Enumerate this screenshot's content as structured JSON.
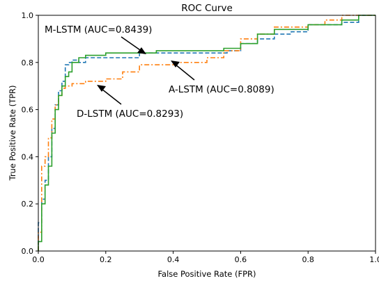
{
  "chart_data": {
    "type": "line",
    "title": "ROC Curve",
    "xlabel": "False Positive Rate (FPR)",
    "ylabel": "True Positive Rate (TPR)",
    "xlim": [
      0,
      1
    ],
    "ylim": [
      0,
      1
    ],
    "xticks": [
      "0.0",
      "0.2",
      "0.4",
      "0.6",
      "0.8",
      "1.0"
    ],
    "yticks": [
      "0.0",
      "0.2",
      "0.4",
      "0.6",
      "0.8",
      "1.0"
    ],
    "grid": false,
    "series": [
      {
        "name": "A-LSTM",
        "color": "#1f77b4",
        "style": "dashed",
        "x": [
          0.0,
          0.01,
          0.02,
          0.03,
          0.04,
          0.05,
          0.06,
          0.07,
          0.08,
          0.09,
          0.1,
          0.12,
          0.14,
          0.3,
          0.56,
          0.6,
          0.65,
          0.7,
          0.75,
          0.8,
          0.9,
          0.95,
          1.0
        ],
        "y": [
          0.0,
          0.12,
          0.22,
          0.3,
          0.4,
          0.52,
          0.62,
          0.68,
          0.72,
          0.79,
          0.8,
          0.81,
          0.8,
          0.82,
          0.84,
          0.85,
          0.88,
          0.9,
          0.92,
          0.93,
          0.96,
          0.97,
          1.0
        ]
      },
      {
        "name": "D-LSTM",
        "color": "#ff7f0e",
        "style": "dashdot",
        "x": [
          0.0,
          0.01,
          0.02,
          0.03,
          0.04,
          0.05,
          0.06,
          0.07,
          0.08,
          0.1,
          0.14,
          0.2,
          0.25,
          0.3,
          0.4,
          0.5,
          0.55,
          0.6,
          0.65,
          0.7,
          0.8,
          0.85,
          0.9,
          1.0
        ],
        "y": [
          0.0,
          0.08,
          0.36,
          0.4,
          0.48,
          0.56,
          0.62,
          0.66,
          0.69,
          0.7,
          0.71,
          0.72,
          0.73,
          0.76,
          0.79,
          0.8,
          0.82,
          0.85,
          0.9,
          0.92,
          0.95,
          0.96,
          0.98,
          1.0
        ]
      },
      {
        "name": "M-LSTM",
        "color": "#2ca02c",
        "style": "solid",
        "x": [
          0.0,
          0.01,
          0.02,
          0.03,
          0.04,
          0.05,
          0.06,
          0.07,
          0.08,
          0.09,
          0.1,
          0.12,
          0.14,
          0.2,
          0.25,
          0.35,
          0.45,
          0.55,
          0.6,
          0.65,
          0.7,
          0.8,
          0.9,
          0.95,
          1.0
        ],
        "y": [
          0.0,
          0.04,
          0.2,
          0.28,
          0.36,
          0.5,
          0.6,
          0.66,
          0.7,
          0.74,
          0.76,
          0.8,
          0.82,
          0.83,
          0.84,
          0.84,
          0.85,
          0.85,
          0.86,
          0.88,
          0.92,
          0.94,
          0.96,
          0.98,
          1.0
        ]
      }
    ],
    "annotations": [
      {
        "text": "M-LSTM (AUC=0.8439)",
        "series": "M-LSTM"
      },
      {
        "text": "A-LSTM (AUC=0.8089)",
        "series": "A-LSTM"
      },
      {
        "text": "D-LSTM (AUC=0.8293)",
        "series": "D-LSTM"
      }
    ]
  }
}
